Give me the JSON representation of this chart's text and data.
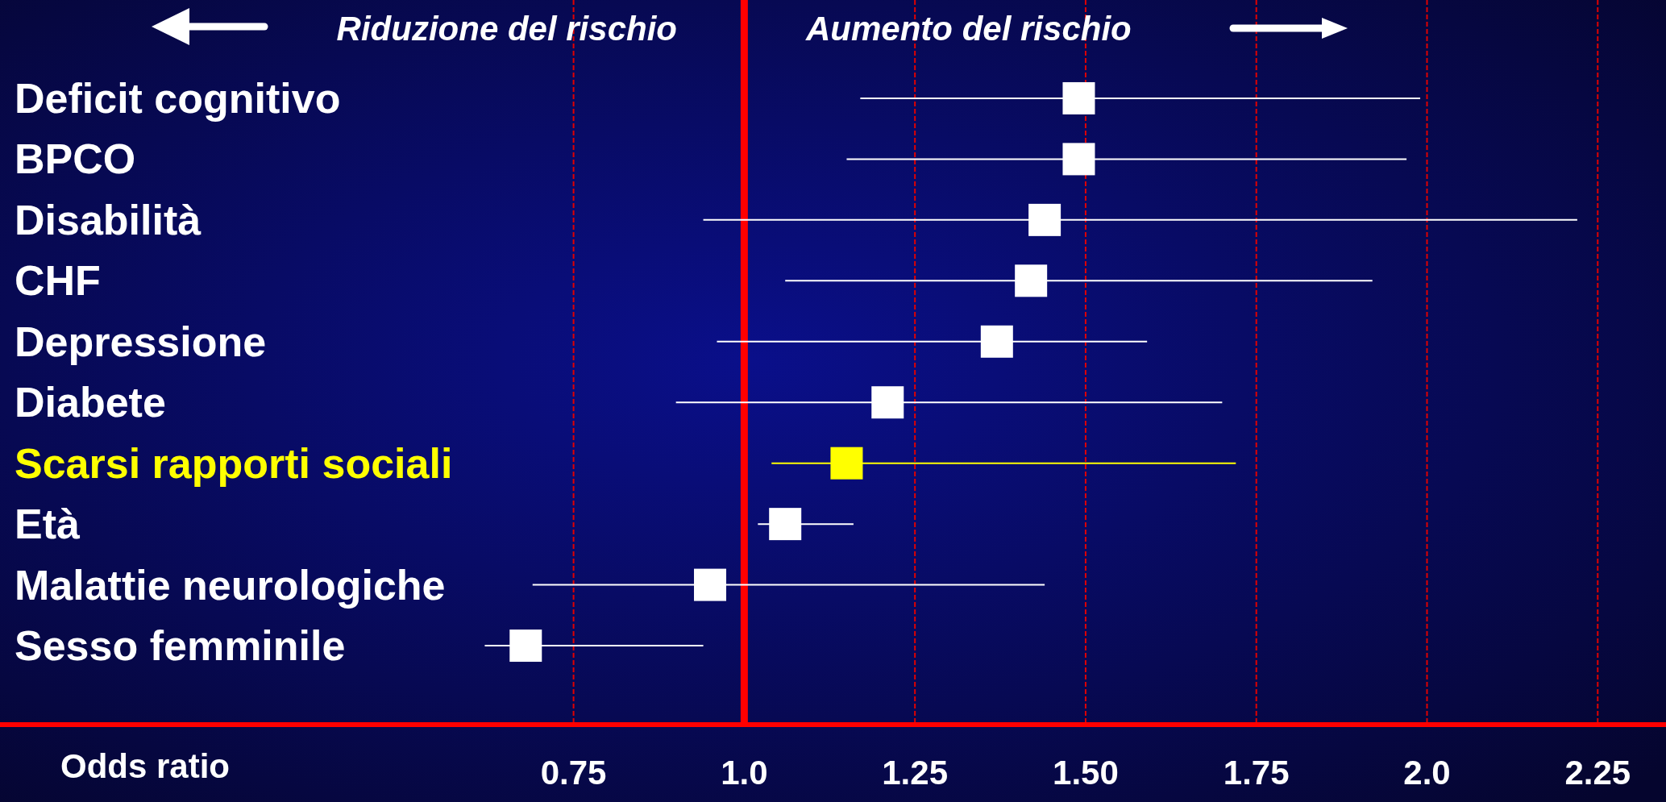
{
  "chart_data": {
    "type": "scatter",
    "orientation": "horizontal",
    "marker": "square",
    "categories": [
      "Deficit cognitivo",
      "BPCO",
      "Disabilità",
      "CHF",
      "Depressione",
      "Diabete",
      "Scarsi rapporti sociali",
      "Età",
      "Malattie neurologiche",
      "Sesso femminile"
    ],
    "values": [
      1.49,
      1.49,
      1.44,
      1.42,
      1.37,
      1.21,
      1.15,
      1.06,
      0.95,
      0.68
    ],
    "errors": [
      [
        1.17,
        1.99
      ],
      [
        1.15,
        1.97
      ],
      [
        0.94,
        2.22
      ],
      [
        1.06,
        1.92
      ],
      [
        0.96,
        1.59
      ],
      [
        0.9,
        1.7
      ],
      [
        1.04,
        1.72
      ],
      [
        1.02,
        1.16
      ],
      [
        0.69,
        1.44
      ],
      [
        0.62,
        0.94
      ]
    ],
    "colors": [
      "#ffffff",
      "#ffffff",
      "#ffffff",
      "#ffffff",
      "#ffffff",
      "#ffffff",
      "#ffff00",
      "#ffffff",
      "#ffffff",
      "#ffffff"
    ],
    "xlim": [
      -0.09,
      2.35
    ],
    "xticks": [
      0.75,
      {
        "value": 1,
        "label": "1.0"
      },
      1.25,
      {
        "value": 1.5,
        "label": "1.50"
      },
      1.75,
      {
        "value": 2,
        "label": "2.0"
      },
      2.25
    ],
    "grid": "x",
    "ref_lines": [
      {
        "axis": "x",
        "value": 1,
        "color": "#ff0000",
        "line_style": "solid"
      }
    ],
    "xlabel": "Odds ratio",
    "annotations": [
      "Riduzione del rischio",
      "Aumento del rischio"
    ]
  }
}
